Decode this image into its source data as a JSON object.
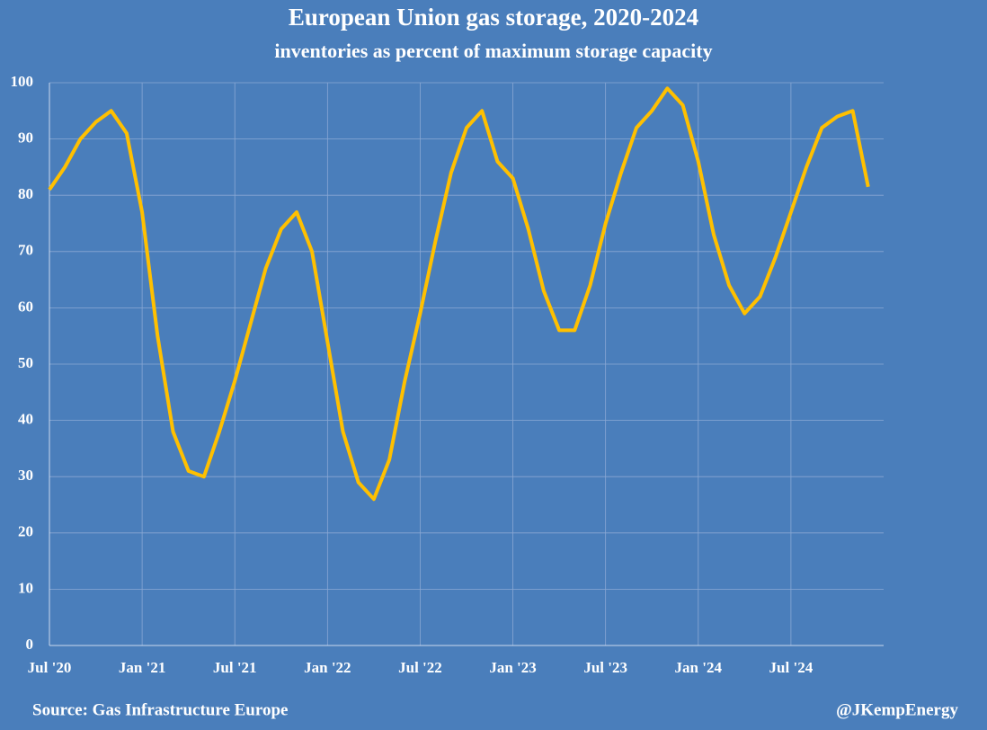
{
  "chart_data": {
    "type": "line",
    "title": "European Union gas storage, 2020-2024",
    "subtitle": "inventories as percent of maximum storage capacity",
    "source": "Source: Gas Infrastructure Europe",
    "credit": "@JKempEnergy",
    "x": [
      "2020-07",
      "2020-08",
      "2020-09",
      "2020-10",
      "2020-11",
      "2020-12",
      "2021-01",
      "2021-02",
      "2021-03",
      "2021-04",
      "2021-05",
      "2021-06",
      "2021-07",
      "2021-08",
      "2021-09",
      "2021-10",
      "2021-11",
      "2021-12",
      "2022-01",
      "2022-02",
      "2022-03",
      "2022-04",
      "2022-05",
      "2022-06",
      "2022-07",
      "2022-08",
      "2022-09",
      "2022-10",
      "2022-11",
      "2022-12",
      "2023-01",
      "2023-02",
      "2023-03",
      "2023-04",
      "2023-05",
      "2023-06",
      "2023-07",
      "2023-08",
      "2023-09",
      "2023-10",
      "2023-11",
      "2023-12",
      "2024-01",
      "2024-02",
      "2024-03",
      "2024-04",
      "2024-05",
      "2024-06",
      "2024-07",
      "2024-08",
      "2024-09",
      "2024-10",
      "2024-11",
      "2024-12"
    ],
    "series": [
      {
        "name": "EU gas storage",
        "color": "#ffc000",
        "values": [
          81,
          85,
          90,
          93,
          95,
          91,
          77,
          55,
          38,
          31,
          30,
          38,
          47,
          57,
          67,
          74,
          77,
          70,
          54,
          38,
          29,
          26,
          33,
          47,
          59,
          72,
          84,
          92,
          95,
          86,
          83,
          74,
          63,
          56,
          56,
          64,
          75,
          84,
          92,
          95,
          99,
          96,
          86,
          73,
          64,
          59,
          62,
          69,
          77,
          85,
          92,
          94,
          95,
          81.5
        ]
      }
    ],
    "xlim": [
      "2020-07",
      "2024-12"
    ],
    "xticks": [
      {
        "value": "2020-07",
        "label": "Jul '20"
      },
      {
        "value": "2021-01",
        "label": "Jan '21"
      },
      {
        "value": "2021-07",
        "label": "Jul '21"
      },
      {
        "value": "2022-01",
        "label": "Jan '22"
      },
      {
        "value": "2022-07",
        "label": "Jul '22"
      },
      {
        "value": "2023-01",
        "label": "Jan '23"
      },
      {
        "value": "2023-07",
        "label": "Jul '23"
      },
      {
        "value": "2024-01",
        "label": "Jan '24"
      },
      {
        "value": "2024-07",
        "label": "Jul '24"
      }
    ],
    "ylim": [
      0,
      100
    ],
    "yticks": [
      0,
      10,
      20,
      30,
      40,
      50,
      60,
      70,
      80,
      90,
      100
    ],
    "grid": true
  }
}
